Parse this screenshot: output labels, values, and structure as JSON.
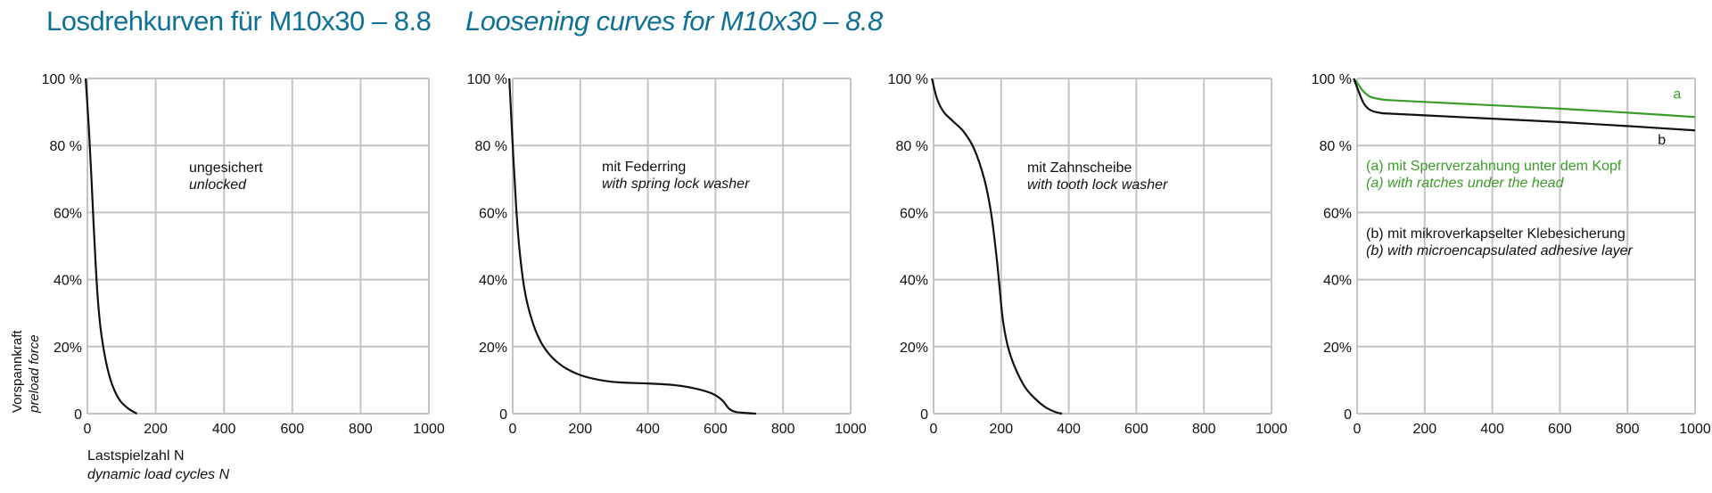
{
  "title_de": "Losdrehkurven für M10x30 – 8.8",
  "title_en": "Loosening curves for M10x30 – 8.8",
  "y_axis_label": {
    "de": "Vorspannkraft",
    "en": "preload force"
  },
  "x_axis_label": {
    "de": "Lastspielzahl N",
    "en": "dynamic load cycles N"
  },
  "colors": {
    "title": "#0f7196",
    "grid": "#c4c4c4",
    "black": "#111111",
    "green": "#3b9c2a"
  },
  "chart_data": [
    {
      "type": "line",
      "xlim": [
        0,
        1000
      ],
      "ylim": [
        0,
        100
      ],
      "xticks": [
        "0",
        "200",
        "400",
        "600",
        "800",
        "1000"
      ],
      "yticks": [
        "0",
        "20%",
        "40%",
        "60%",
        "80 %",
        "100 %"
      ],
      "annotation": {
        "de": "ungesichert",
        "en": "unlocked"
      },
      "series": [
        {
          "name": "unlocked",
          "color": "#111111",
          "x": [
            -5,
            5,
            12,
            18,
            24,
            30,
            38,
            48,
            60,
            75,
            95,
            120,
            145
          ],
          "y": [
            100,
            84,
            70,
            57,
            45,
            35,
            26,
            19,
            13,
            8,
            4,
            1.5,
            0
          ]
        }
      ]
    },
    {
      "type": "line",
      "xlim": [
        0,
        1000
      ],
      "ylim": [
        0,
        100
      ],
      "xticks": [
        "0",
        "200",
        "400",
        "600",
        "800",
        "1000"
      ],
      "yticks": [
        "0",
        "20%",
        "40%",
        "60%",
        "80 %",
        "100 %"
      ],
      "annotation": {
        "de": "mit Federring",
        "en": "with spring lock washer"
      },
      "series": [
        {
          "name": "spring lock washer",
          "color": "#111111",
          "x": [
            -10,
            0,
            10,
            20,
            35,
            55,
            80,
            110,
            150,
            200,
            260,
            320,
            400,
            480,
            540,
            590,
            620,
            640,
            660,
            690,
            720
          ],
          "y": [
            100,
            80,
            62,
            49,
            37,
            28.5,
            22,
            17.5,
            14,
            11.5,
            10,
            9.3,
            9,
            8.5,
            7.5,
            6,
            4,
            1.5,
            0.5,
            0.2,
            0
          ]
        }
      ]
    },
    {
      "type": "line",
      "xlim": [
        0,
        1000
      ],
      "ylim": [
        0,
        100
      ],
      "xticks": [
        "0",
        "200",
        "400",
        "600",
        "800",
        "1000"
      ],
      "yticks": [
        "0",
        "20%",
        "40%",
        "60%",
        "80 %",
        "100 %"
      ],
      "annotation": {
        "de": "mit Zahnscheibe",
        "en": "with tooth lock washer"
      },
      "series": [
        {
          "name": "tooth lock washer",
          "color": "#111111",
          "x": [
            -5,
            10,
            30,
            60,
            90,
            120,
            150,
            170,
            185,
            195,
            205,
            220,
            240,
            270,
            300,
            330,
            360,
            380
          ],
          "y": [
            100,
            94,
            90,
            87,
            84,
            79,
            70,
            60,
            48,
            38,
            28,
            20,
            14,
            8,
            4.5,
            2,
            0.5,
            0
          ]
        }
      ]
    },
    {
      "type": "line",
      "xlim": [
        0,
        1000
      ],
      "ylim": [
        0,
        100
      ],
      "xticks": [
        "0",
        "200",
        "400",
        "600",
        "800",
        "1000"
      ],
      "yticks": [
        "0",
        "20%",
        "40%",
        "60%",
        "80 %",
        "100 %"
      ],
      "legend": [
        {
          "de": "(a) mit Sperrverzahnung unter dem Kopf",
          "en": "(a) with ratches under the head",
          "color": "#3b9c2a"
        },
        {
          "de": "(b) mit mikroverkapselter Klebesicherung",
          "en": "(b) with microencapsulated adhesive layer",
          "color": "#111111"
        }
      ],
      "series": [
        {
          "name": "a",
          "color": "#3b9c2a",
          "x": [
            -10,
            5,
            20,
            40,
            70,
            100,
            200,
            400,
            600,
            800,
            1000
          ],
          "y": [
            100,
            98,
            96,
            94.5,
            93.8,
            93.5,
            93,
            92,
            91,
            89.8,
            88.5
          ]
        },
        {
          "name": "b",
          "color": "#111111",
          "x": [
            -10,
            5,
            20,
            40,
            70,
            100,
            200,
            400,
            600,
            800,
            1000
          ],
          "y": [
            100,
            96,
            92.5,
            90.5,
            89.7,
            89.5,
            89,
            88,
            87,
            85.8,
            84.5
          ]
        }
      ]
    }
  ]
}
